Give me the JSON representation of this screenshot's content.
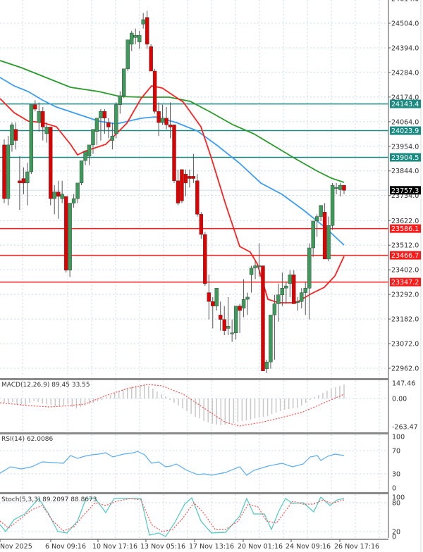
{
  "chart_data": {
    "type": "candlestick",
    "title": "",
    "x_labels": [
      "Nov 2025",
      "6 Nov 09:16",
      "10 Nov 17:16",
      "13 Nov 05:16",
      "17 Nov 13:16",
      "20 Nov 01:16",
      "24 Nov 09:16",
      "26 Nov 17:16"
    ],
    "price_axis": {
      "ticks": [
        "24614.0",
        "24504.0",
        "24394.0",
        "24284.0",
        "24174.0",
        "24064.0",
        "23954.0",
        "23844.0",
        "23734.0",
        "23622.0",
        "23512.0",
        "23402.0",
        "23292.0",
        "23182.0",
        "23072.0",
        "22962.0"
      ],
      "range": [
        22920,
        24630
      ]
    },
    "current_price": {
      "value": "23757.3",
      "color": "#000000"
    },
    "horizontal_levels": [
      {
        "value": "24143.4",
        "color": "#1a8a82",
        "type": "resistance"
      },
      {
        "value": "24023.9",
        "color": "#1a8a82",
        "type": "resistance"
      },
      {
        "value": "23904.5",
        "color": "#1a8a82",
        "type": "resistance"
      },
      {
        "value": "23586.1",
        "color": "#ff1a1a",
        "type": "support"
      },
      {
        "value": "23466.7",
        "color": "#ff1a1a",
        "type": "support"
      },
      {
        "value": "23347.2",
        "color": "#ff1a1a",
        "type": "support"
      }
    ],
    "candles_ohlc": [
      [
        23960,
        23985,
        23700,
        23720
      ],
      [
        23720,
        24000,
        23690,
        23960
      ],
      [
        23960,
        24060,
        23930,
        24050
      ],
      [
        24030,
        24060,
        23940,
        23980
      ],
      [
        23800,
        23910,
        23670,
        23790
      ],
      [
        23810,
        23860,
        23740,
        23790
      ],
      [
        23790,
        23880,
        23690,
        23840
      ],
      [
        23840,
        24140,
        23830,
        24140
      ],
      [
        24140,
        24160,
        24110,
        24120
      ],
      [
        24060,
        24150,
        24020,
        24110
      ],
      [
        24110,
        24130,
        23980,
        24040
      ],
      [
        24010,
        24060,
        23970,
        24040
      ],
      [
        24040,
        24040,
        23690,
        23720
      ],
      [
        23720,
        23780,
        23650,
        23750
      ],
      [
        23750,
        23800,
        23630,
        23730
      ],
      [
        23720,
        23800,
        23700,
        23740
      ],
      [
        23730,
        23730,
        23390,
        23400
      ],
      [
        23400,
        23680,
        23370,
        23700
      ],
      [
        23700,
        23740,
        23680,
        23720
      ],
      [
        23720,
        23780,
        23700,
        23790
      ],
      [
        23790,
        23850,
        23780,
        23890
      ],
      [
        23890,
        23930,
        23870,
        23930
      ],
      [
        23910,
        23960,
        23870,
        23960
      ],
      [
        23960,
        24010,
        23920,
        24030
      ],
      [
        24020,
        24070,
        23960,
        24080
      ],
      [
        24080,
        24120,
        23980,
        24110
      ],
      [
        24110,
        24120,
        24010,
        24080
      ],
      [
        24060,
        24080,
        23990,
        24040
      ],
      [
        23980,
        24060,
        23940,
        24000
      ],
      [
        24010,
        24150,
        23990,
        24140
      ],
      [
        24140,
        24200,
        24100,
        24180
      ],
      [
        24180,
        24300,
        24170,
        24300
      ],
      [
        24300,
        24390,
        24290,
        24430
      ],
      [
        24410,
        24470,
        24380,
        24460
      ],
      [
        24440,
        24480,
        24410,
        24450
      ],
      [
        24420,
        24470,
        24390,
        24450
      ],
      [
        24500,
        24550,
        24480,
        24520
      ],
      [
        24530,
        24560,
        24390,
        24410
      ],
      [
        24400,
        24410,
        24290,
        24290
      ],
      [
        24290,
        24300,
        24100,
        24110
      ],
      [
        24110,
        24150,
        24000,
        24060
      ],
      [
        24060,
        24140,
        24050,
        24080
      ],
      [
        24080,
        24130,
        24030,
        24050
      ],
      [
        24050,
        24150,
        23990,
        24040
      ],
      [
        24050,
        24050,
        23790,
        23800
      ],
      [
        23800,
        23850,
        23690,
        23700
      ],
      [
        23850,
        23850,
        23700,
        23710
      ],
      [
        23830,
        23850,
        23730,
        23790
      ],
      [
        23820,
        23850,
        23770,
        23810
      ],
      [
        23820,
        23920,
        23790,
        23810
      ],
      [
        23800,
        23830,
        23640,
        23650
      ],
      [
        23650,
        23660,
        23540,
        23560
      ],
      [
        23560,
        23570,
        23330,
        23340
      ],
      [
        23300,
        23380,
        23180,
        23260
      ],
      [
        23260,
        23280,
        23140,
        23240
      ],
      [
        23240,
        23300,
        23220,
        23320
      ],
      [
        23200,
        23260,
        23130,
        23180
      ],
      [
        23180,
        23240,
        23110,
        23130
      ],
      [
        23140,
        23280,
        23110,
        23150
      ],
      [
        23120,
        23180,
        23080,
        23120
      ],
      [
        23120,
        23230,
        23090,
        23240
      ],
      [
        23240,
        23250,
        23120,
        23220
      ],
      [
        23230,
        23360,
        23190,
        23270
      ],
      [
        23270,
        23300,
        23200,
        23280
      ],
      [
        23380,
        23420,
        23300,
        23410
      ],
      [
        23410,
        23440,
        23360,
        23420
      ],
      [
        23420,
        23520,
        23370,
        23420
      ],
      [
        23420,
        23420,
        22960,
        22950
      ],
      [
        22960,
        23000,
        22940,
        22990
      ],
      [
        22990,
        23140,
        22960,
        23200
      ],
      [
        23200,
        23290,
        23000,
        23250
      ],
      [
        23250,
        23340,
        23170,
        23290
      ],
      [
        23290,
        23390,
        23240,
        23320
      ],
      [
        23320,
        23350,
        23250,
        23330
      ],
      [
        23340,
        23400,
        23280,
        23380
      ],
      [
        23380,
        23400,
        23250,
        23250
      ],
      [
        23260,
        23280,
        23220,
        23260
      ],
      [
        23260,
        23320,
        23230,
        23300
      ],
      [
        23300,
        23350,
        23200,
        23320
      ],
      [
        23320,
        23520,
        23180,
        23500
      ],
      [
        23500,
        23590,
        23460,
        23620
      ],
      [
        23620,
        23650,
        23550,
        23640
      ],
      [
        23640,
        23680,
        23620,
        23690
      ],
      [
        23660,
        23700,
        23450,
        23450
      ],
      [
        23450,
        23640,
        23440,
        23600
      ],
      [
        23600,
        23790,
        23580,
        23780
      ],
      [
        23770,
        23790,
        23740,
        23770
      ],
      [
        23760,
        23790,
        23730,
        23780
      ],
      [
        23780,
        23780,
        23740,
        23757
      ]
    ],
    "moving_averages": [
      {
        "name": "MA green (long)",
        "color": "#2a9a2a"
      },
      {
        "name": "MA blue (mid)",
        "color": "#3d9df0"
      },
      {
        "name": "MA red (short)",
        "color": "#ff2020"
      }
    ],
    "indicators": {
      "macd": {
        "label": "MACD(12,26,9) 89.45 33.55",
        "params": "12,26,9",
        "main": 89.45,
        "signal": 33.55,
        "ticks": [
          "147.46",
          "0.00",
          "-263.47"
        ]
      },
      "rsi": {
        "label": "RSI(14) 62.0086",
        "period": 14,
        "value": 62.0086,
        "ticks": [
          "100",
          "70",
          "30",
          "0"
        ]
      },
      "stoch": {
        "label": "Stoch(5,3,3) 89.2097 88.8673",
        "params": "5,3,3",
        "main": 89.2097,
        "signal": 88.8673,
        "ticks": [
          "100",
          "80",
          "20",
          "0"
        ]
      }
    }
  }
}
